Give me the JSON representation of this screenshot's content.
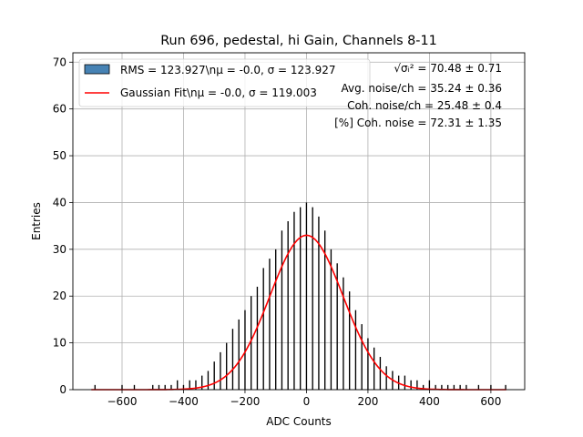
{
  "chart_data": {
    "type": "bar",
    "title": "Run 696, pedestal, hi Gain, Channels 8-11",
    "xlabel": "ADC Counts",
    "ylabel": "Entries",
    "xlim": [
      -760,
      710
    ],
    "ylim": [
      0,
      72
    ],
    "grid": true,
    "xticks": [
      -600,
      -400,
      -200,
      0,
      200,
      400,
      600
    ],
    "yticks": [
      0,
      10,
      20,
      30,
      40,
      50,
      60,
      70
    ],
    "legend": {
      "placement": "top-left",
      "entries": [
        {
          "label": "RMS = 123.927\\nμ = -0.0, σ = 123.927",
          "kind": "patch",
          "color": "#4682b4"
        },
        {
          "label": "Gaussian Fit\\nμ = -0.0, σ = 119.003",
          "kind": "line",
          "color": "#ff0000"
        }
      ]
    },
    "annotations": [
      "√σᵢ² = 70.48 ± 0.71",
      "Avg. noise/ch = 35.24 ± 0.36",
      "Coh. noise/ch = 25.48 ± 0.4",
      "[%] Coh. noise = 72.31 ± 1.35"
    ],
    "histogram": {
      "color": "#000000",
      "bin_width": 4,
      "x": [
        -688,
        -600,
        -560,
        -500,
        -480,
        -460,
        -440,
        -420,
        -400,
        -380,
        -360,
        -340,
        -320,
        -300,
        -280,
        -260,
        -240,
        -220,
        -200,
        -180,
        -160,
        -140,
        -120,
        -100,
        -80,
        -60,
        -40,
        -20,
        0,
        20,
        40,
        60,
        80,
        100,
        120,
        140,
        160,
        180,
        200,
        220,
        240,
        260,
        280,
        300,
        320,
        340,
        360,
        380,
        400,
        420,
        440,
        460,
        480,
        500,
        520,
        560,
        600,
        648
      ],
      "values": [
        1,
        1,
        1,
        1,
        1,
        1,
        1,
        2,
        1,
        2,
        2,
        3,
        4,
        6,
        8,
        10,
        13,
        15,
        17,
        20,
        22,
        26,
        28,
        30,
        34,
        36,
        38,
        39,
        40,
        39,
        37,
        34,
        30,
        27,
        24,
        21,
        17,
        14,
        11,
        9,
        7,
        5,
        4,
        3,
        3,
        2,
        2,
        1,
        2,
        1,
        1,
        1,
        1,
        1,
        1,
        1,
        1,
        1
      ]
    },
    "fit": {
      "color": "#ff0000",
      "mean": -0.0,
      "sigma": 119.003,
      "amplitude": 33,
      "x_range": [
        -700,
        650
      ]
    }
  }
}
